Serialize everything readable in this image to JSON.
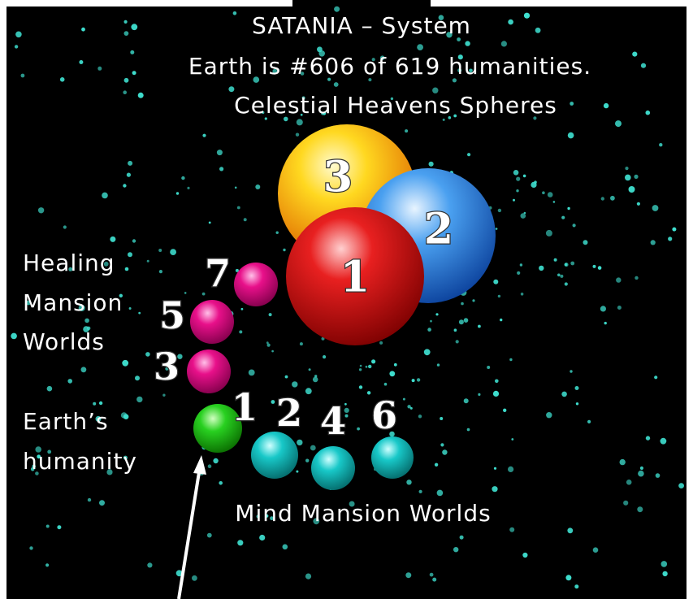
{
  "header": {
    "title": "SATANIA – System",
    "subtitle": "Earth is #606 of 619 humanities.",
    "caption": "Celestial Heavens Spheres"
  },
  "labels": {
    "healing": [
      "Healing",
      "Mansion",
      "Worlds"
    ],
    "earth": [
      "Earth’s",
      "humanity"
    ],
    "mind": "Mind Mansion Worlds"
  },
  "spheres": {
    "heavens": [
      "3",
      "2",
      "1"
    ],
    "healing": [
      "7",
      "5",
      "3"
    ],
    "earth": "1",
    "mind": [
      "2",
      "4",
      "6"
    ]
  }
}
